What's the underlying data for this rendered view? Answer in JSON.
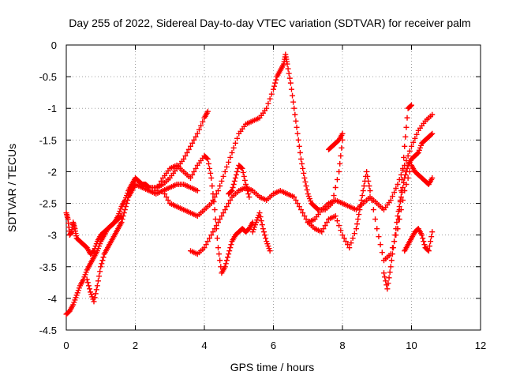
{
  "chart_data": {
    "type": "scatter",
    "title": "Day 255 of 2022, Sidereal Day-to-day VTEC variation (SDTVAR) for receiver palm",
    "xlabel": "GPS time / hours",
    "ylabel": "SDTVAR / TECUs",
    "xlim": [
      0,
      12
    ],
    "ylim": [
      -4.5,
      0
    ],
    "xticks": [
      "0",
      "2",
      "4",
      "6",
      "8",
      "10",
      "12"
    ],
    "yticks": [
      "0",
      "-0.5",
      "-1",
      "-1.5",
      "-2",
      "-2.5",
      "-3",
      "-3.5",
      "-4",
      "-4.5"
    ],
    "grid": true,
    "marker": "+",
    "color": "#ff0000",
    "series": [
      {
        "x": [
          0.0,
          0.1,
          0.2,
          0.3,
          0.4,
          0.5,
          0.6,
          0.7,
          0.8,
          0.9,
          1.0,
          1.1,
          1.2,
          1.3,
          1.4,
          1.5,
          1.6,
          1.7,
          1.8,
          1.9,
          2.0,
          2.1,
          2.2,
          2.3,
          2.4,
          2.6,
          2.8,
          3.0,
          3.2,
          3.4,
          3.6,
          3.8,
          4.0,
          4.1
        ],
        "y": [
          -4.25,
          -4.2,
          -4.1,
          -3.95,
          -3.8,
          -3.7,
          -3.55,
          -3.45,
          -3.35,
          -3.25,
          -3.1,
          -3.0,
          -2.9,
          -2.85,
          -2.8,
          -2.7,
          -2.55,
          -2.45,
          -2.3,
          -2.2,
          -2.1,
          -2.15,
          -2.2,
          -2.2,
          -2.25,
          -2.25,
          -2.2,
          -2.1,
          -1.95,
          -1.8,
          -1.6,
          -1.4,
          -1.15,
          -1.05
        ]
      },
      {
        "x": [
          0.0,
          0.05,
          0.1,
          0.15,
          0.2,
          0.25,
          0.3,
          0.4,
          0.5,
          0.6,
          0.7,
          0.8,
          0.9,
          1.0,
          1.1,
          1.2,
          1.3,
          1.4,
          1.5,
          1.6
        ],
        "y": [
          -2.65,
          -2.75,
          -3.0,
          -2.95,
          -2.8,
          -2.9,
          -3.05,
          -3.1,
          -3.15,
          -3.2,
          -3.3,
          -3.25,
          -3.1,
          -3.0,
          -2.95,
          -2.9,
          -2.85,
          -2.8,
          -2.75,
          -2.7
        ]
      },
      {
        "x": [
          0.6,
          0.7,
          0.8,
          0.9,
          1.0,
          1.1,
          1.2,
          1.3,
          1.4,
          1.5,
          1.6,
          1.7,
          1.8,
          1.9,
          2.0,
          2.2,
          2.4,
          2.6,
          2.8,
          3.0,
          3.2,
          3.4,
          3.6,
          3.8
        ],
        "y": [
          -3.7,
          -3.9,
          -4.05,
          -3.8,
          -3.5,
          -3.3,
          -3.2,
          -3.1,
          -3.0,
          -2.9,
          -2.8,
          -2.6,
          -2.4,
          -2.3,
          -2.2,
          -2.25,
          -2.3,
          -2.35,
          -2.3,
          -2.25,
          -2.2,
          -2.2,
          -2.25,
          -2.3
        ]
      },
      {
        "x": [
          2.8,
          3.0,
          3.2,
          3.4,
          3.6,
          3.8,
          4.0,
          4.2,
          4.4,
          4.6,
          4.8,
          5.0,
          5.2,
          5.4,
          5.6,
          5.8,
          6.0,
          6.1,
          6.2,
          6.3,
          6.35,
          6.4,
          6.5,
          6.6,
          6.7,
          6.8,
          6.9,
          7.0,
          7.1,
          7.2,
          7.3,
          7.5,
          7.7,
          7.9,
          8.0
        ],
        "y": [
          -2.3,
          -2.5,
          -2.55,
          -2.6,
          -2.65,
          -2.7,
          -2.6,
          -2.5,
          -2.3,
          -2.0,
          -1.7,
          -1.4,
          -1.25,
          -1.2,
          -1.15,
          -1.0,
          -0.7,
          -0.5,
          -0.4,
          -0.3,
          -0.15,
          -0.3,
          -0.6,
          -1.0,
          -1.4,
          -1.8,
          -2.1,
          -2.35,
          -2.5,
          -2.55,
          -2.6,
          -2.6,
          -2.5,
          -2.0,
          -1.5
        ]
      },
      {
        "x": [
          3.6,
          3.8,
          4.0,
          4.2,
          4.4,
          4.6,
          4.8,
          5.0,
          5.2,
          5.4,
          5.6,
          5.8,
          6.0,
          6.2,
          6.4,
          6.6,
          6.8,
          7.0,
          7.2,
          7.4,
          7.6,
          7.8,
          8.0,
          8.2,
          8.4,
          8.6,
          8.8,
          9.0,
          9.2,
          9.4,
          9.6,
          9.8,
          10.0,
          10.2,
          10.4,
          10.6
        ],
        "y": [
          -3.25,
          -3.3,
          -3.2,
          -3.0,
          -2.8,
          -2.6,
          -2.4,
          -2.3,
          -2.25,
          -2.3,
          -2.4,
          -2.45,
          -2.35,
          -2.3,
          -2.35,
          -2.4,
          -2.6,
          -2.8,
          -2.75,
          -2.6,
          -2.5,
          -2.45,
          -2.5,
          -2.55,
          -2.6,
          -2.5,
          -2.4,
          -2.5,
          -2.6,
          -2.45,
          -2.2,
          -1.9,
          -1.6,
          -1.35,
          -1.2,
          -1.1
        ]
      },
      {
        "x": [
          2.6,
          2.8,
          3.0,
          3.2,
          3.4,
          3.6,
          3.8,
          4.0,
          4.1,
          4.2,
          4.3,
          4.4,
          4.5,
          4.6,
          4.7,
          4.8,
          4.9,
          5.0,
          5.1,
          5.2,
          5.3,
          5.4
        ],
        "y": [
          -2.3,
          -2.1,
          -1.95,
          -1.9,
          -2.0,
          -2.1,
          -1.9,
          -1.75,
          -1.8,
          -2.1,
          -2.6,
          -3.2,
          -3.6,
          -3.5,
          -3.3,
          -3.1,
          -3.0,
          -2.95,
          -2.9,
          -2.95,
          -2.9,
          -2.8
        ]
      },
      {
        "x": [
          4.7,
          4.8,
          4.9,
          5.0,
          5.1,
          5.2,
          5.3
        ],
        "y": [
          -2.35,
          -2.3,
          -2.1,
          -1.9,
          -1.95,
          -2.2,
          -2.4
        ]
      },
      {
        "x": [
          5.4,
          5.5,
          5.6,
          5.7,
          5.8,
          5.9
        ],
        "y": [
          -2.95,
          -2.8,
          -2.65,
          -2.9,
          -3.1,
          -3.25
        ]
      },
      {
        "x": [
          7.0,
          7.2,
          7.4,
          7.6,
          7.8,
          8.0,
          8.2,
          8.4,
          8.5,
          8.6,
          8.7,
          8.8,
          9.0,
          9.2,
          9.4,
          9.6,
          9.8,
          10.0,
          10.1,
          10.2,
          10.3,
          10.4,
          10.5,
          10.6
        ],
        "y": [
          -2.8,
          -2.9,
          -2.95,
          -2.75,
          -2.7,
          -3.0,
          -3.2,
          -2.9,
          -2.6,
          -2.3,
          -2.0,
          -2.3,
          -2.9,
          -3.4,
          -3.3,
          -2.9,
          -2.3,
          -1.9,
          -2.0,
          -2.05,
          -2.1,
          -2.15,
          -2.2,
          -2.1
        ]
      },
      {
        "x": [
          9.2,
          9.3,
          9.4,
          9.5,
          9.6,
          9.7,
          9.8,
          9.9,
          10.0,
          10.1,
          10.2,
          10.3,
          10.4,
          10.5,
          10.6
        ],
        "y": [
          -3.6,
          -3.85,
          -3.5,
          -3.1,
          -2.7,
          -2.4,
          -2.1,
          -1.9,
          -1.8,
          -1.75,
          -1.7,
          -1.55,
          -1.5,
          -1.45,
          -1.4
        ]
      },
      {
        "x": [
          9.8,
          9.9,
          10.0,
          10.1,
          10.2,
          10.3,
          10.4,
          10.5,
          10.6
        ],
        "y": [
          -3.25,
          -3.15,
          -3.05,
          -2.95,
          -2.9,
          -3.0,
          -3.2,
          -3.25,
          -2.95
        ]
      },
      {
        "x": [
          9.6,
          9.7,
          9.8,
          9.9,
          10.0
        ],
        "y": [
          -2.9,
          -2.3,
          -1.6,
          -1.0,
          -0.95
        ]
      },
      {
        "x": [
          7.6,
          7.7,
          7.8,
          7.9,
          8.0
        ],
        "y": [
          -1.65,
          -1.6,
          -1.55,
          -1.5,
          -1.4
        ]
      }
    ]
  }
}
